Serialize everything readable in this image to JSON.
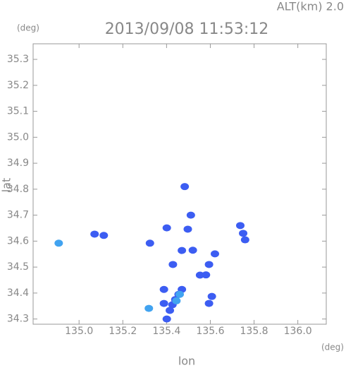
{
  "chart_data": {
    "type": "scatter",
    "title": "2013/09/08 11:53:12",
    "subtitle": "ALT(km) 2.0",
    "x_label": "lon",
    "y_label": "lat",
    "x_unit": "(deg)",
    "y_unit": "(deg)",
    "xlim": [
      134.79,
      136.13
    ],
    "ylim": [
      34.28,
      35.36
    ],
    "xticks": [
      {
        "value": 135.0,
        "label": "135.0"
      },
      135.2,
      135.4,
      135.6,
      135.8,
      {
        "value": 136.0,
        "label": "136.0"
      }
    ],
    "yticks": [
      34.3,
      34.4,
      34.5,
      34.6,
      34.7,
      34.8,
      34.9,
      {
        "value": 35.0,
        "label": "35.0"
      },
      35.1,
      35.2,
      35.3
    ],
    "series": [
      {
        "color": "#3c5df2",
        "x": [
          135.071,
          135.113,
          135.324,
          135.401,
          135.483,
          135.511,
          135.47,
          135.429,
          135.388,
          135.388,
          135.47,
          135.455,
          135.44,
          135.427,
          135.415,
          135.401,
          135.553,
          135.594,
          135.621,
          135.594,
          135.607,
          135.737,
          135.759,
          135.75,
          135.497,
          135.58,
          135.52
        ],
        "values": [
          34.627,
          34.622,
          34.592,
          34.651,
          34.81,
          34.7,
          34.564,
          34.51,
          34.414,
          34.36,
          34.414,
          34.395,
          34.375,
          34.355,
          34.333,
          34.3,
          34.469,
          34.51,
          34.551,
          34.36,
          34.387,
          34.66,
          34.605,
          34.63,
          34.646,
          34.47,
          34.565
        ]
      },
      {
        "color": "#41a3f0",
        "x": [
          134.907,
          135.319,
          135.445,
          135.46
        ],
        "values": [
          34.592,
          34.341,
          34.37,
          34.395
        ]
      }
    ]
  }
}
